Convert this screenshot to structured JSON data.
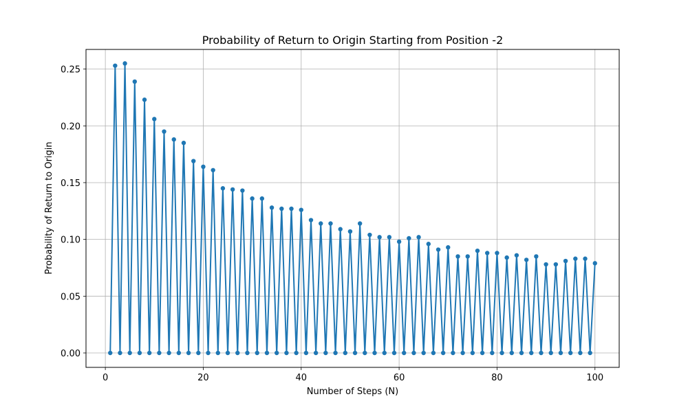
{
  "chart_data": {
    "type": "line",
    "title": "Probability of Return to Origin Starting from Position -2",
    "xlabel": "Number of Steps (N)",
    "ylabel": "Probability of Return to Origin",
    "xlim": [
      -3.95,
      104.95
    ],
    "ylim": [
      -0.0127,
      0.2673
    ],
    "xticks": [
      0,
      20,
      40,
      60,
      80,
      100
    ],
    "xtick_labels": [
      "0",
      "20",
      "40",
      "60",
      "80",
      "100"
    ],
    "yticks": [
      0.0,
      0.05,
      0.1,
      0.15,
      0.2,
      0.25
    ],
    "ytick_labels": [
      "0.00",
      "0.05",
      "0.10",
      "0.15",
      "0.20",
      "0.25"
    ],
    "grid": true,
    "legend": false,
    "color": "#1f77b4",
    "marker": "circle",
    "series": [
      {
        "x": [
          1,
          2,
          3,
          4,
          5,
          6,
          7,
          8,
          9,
          10,
          11,
          12,
          13,
          14,
          15,
          16,
          17,
          18,
          19,
          20,
          21,
          22,
          23,
          24,
          25,
          26,
          27,
          28,
          29,
          30,
          31,
          32,
          33,
          34,
          35,
          36,
          37,
          38,
          39,
          40,
          41,
          42,
          43,
          44,
          45,
          46,
          47,
          48,
          49,
          50,
          51,
          52,
          53,
          54,
          55,
          56,
          57,
          58,
          59,
          60,
          61,
          62,
          63,
          64,
          65,
          66,
          67,
          68,
          69,
          70,
          71,
          72,
          73,
          74,
          75,
          76,
          77,
          78,
          79,
          80,
          81,
          82,
          83,
          84,
          85,
          86,
          87,
          88,
          89,
          90,
          91,
          92,
          93,
          94,
          95,
          96,
          97,
          98,
          99,
          100
        ],
        "y": [
          0,
          0.253,
          0,
          0.255,
          0,
          0.239,
          0,
          0.223,
          0,
          0.206,
          0,
          0.195,
          0,
          0.188,
          0,
          0.185,
          0,
          0.169,
          0,
          0.164,
          0,
          0.161,
          0,
          0.145,
          0,
          0.144,
          0,
          0.143,
          0,
          0.136,
          0,
          0.136,
          0,
          0.128,
          0,
          0.127,
          0,
          0.127,
          0,
          0.126,
          0,
          0.117,
          0,
          0.114,
          0,
          0.114,
          0,
          0.109,
          0,
          0.107,
          0,
          0.114,
          0,
          0.104,
          0,
          0.102,
          0,
          0.102,
          0,
          0.098,
          0,
          0.101,
          0,
          0.102,
          0,
          0.096,
          0,
          0.091,
          0,
          0.093,
          0,
          0.085,
          0,
          0.085,
          0,
          0.09,
          0,
          0.088,
          0,
          0.088,
          0,
          0.084,
          0,
          0.086,
          0,
          0.082,
          0,
          0.085,
          0,
          0.078,
          0,
          0.078,
          0,
          0.081,
          0,
          0.083,
          0,
          0.083,
          0,
          0.079
        ]
      }
    ]
  }
}
